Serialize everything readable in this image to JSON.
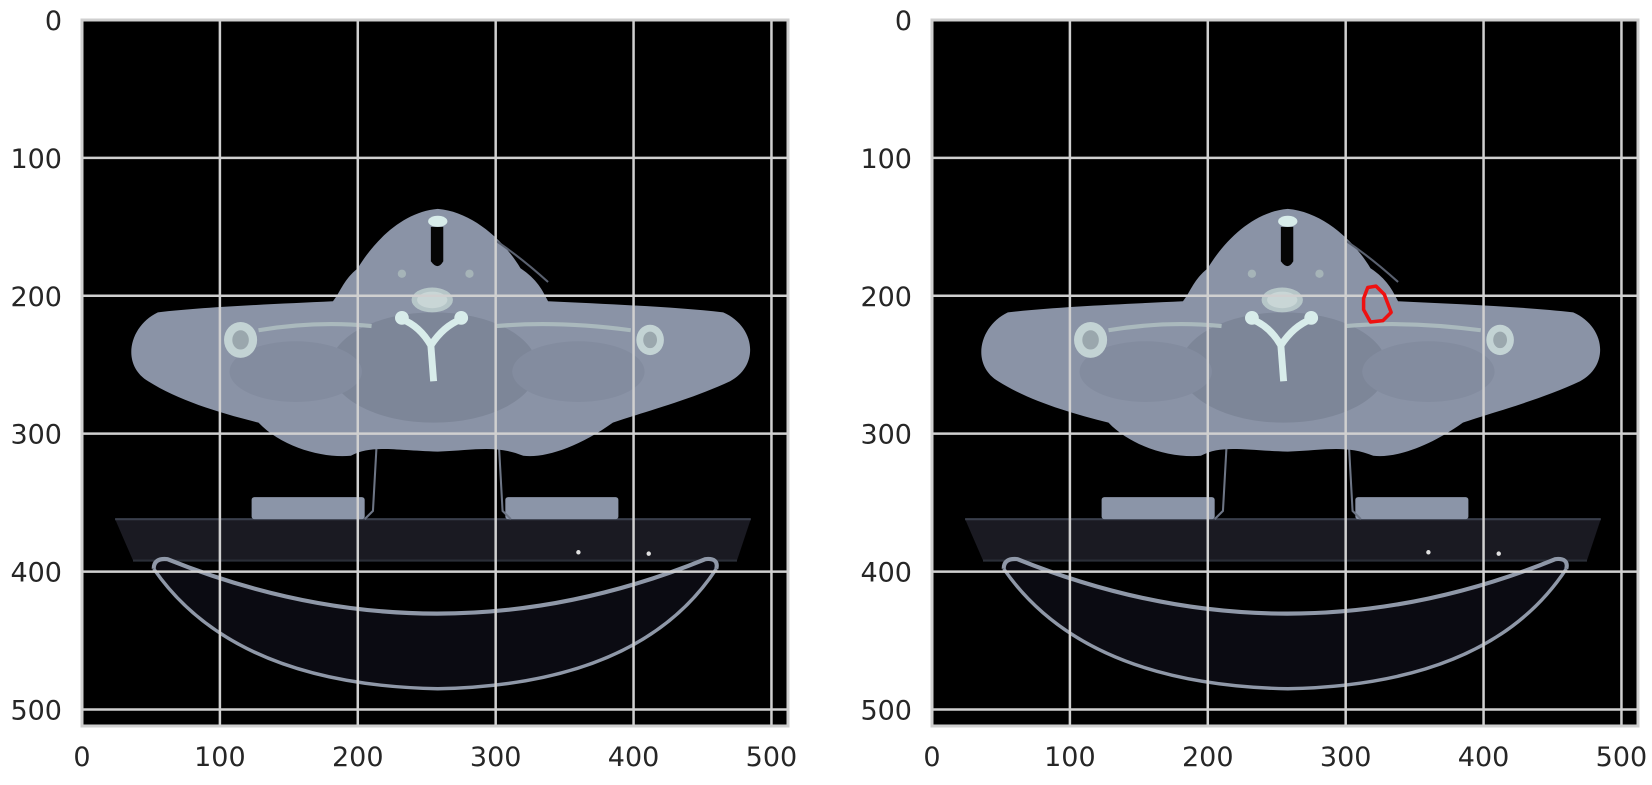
{
  "figure": {
    "type": "image_panels",
    "description_panels": [
      "ct-slice",
      "ct-slice-with-contour"
    ],
    "colors": {
      "background": "#000000",
      "tissue": "#8a93a6",
      "bone": "#d8ecea",
      "grid": "#d0d0d0",
      "frame": "#cfcfcf",
      "contour": "#ee1111",
      "tick_text": "#262626"
    }
  },
  "chart_data": [
    {
      "type": "image",
      "title": "",
      "xlim": [
        0,
        512
      ],
      "ylim": [
        512,
        0
      ],
      "xticks": [
        0,
        100,
        200,
        300,
        400,
        500
      ],
      "yticks": [
        0,
        100,
        200,
        300,
        400,
        500
      ],
      "xtick_labels": [
        "0",
        "100",
        "200",
        "300",
        "400",
        "500"
      ],
      "ytick_labels": [
        "0",
        "100",
        "200",
        "300",
        "400",
        "500"
      ],
      "grid": true,
      "contour": null
    },
    {
      "type": "image",
      "title": "",
      "xlim": [
        0,
        512
      ],
      "ylim": [
        512,
        0
      ],
      "xticks": [
        0,
        100,
        200,
        300,
        400,
        500
      ],
      "yticks": [
        0,
        100,
        200,
        300,
        400,
        500
      ],
      "xtick_labels": [
        "0",
        "100",
        "200",
        "300",
        "400",
        "500"
      ],
      "ytick_labels": [
        "0",
        "100",
        "200",
        "300",
        "400",
        "500"
      ],
      "grid": true,
      "contour": {
        "color": "#ee1111",
        "points": [
          [
            313,
            202
          ],
          [
            316,
            194
          ],
          [
            322,
            193
          ],
          [
            328,
            199
          ],
          [
            333,
            212
          ],
          [
            327,
            218
          ],
          [
            318,
            219
          ],
          [
            313,
            210
          ]
        ]
      }
    }
  ]
}
